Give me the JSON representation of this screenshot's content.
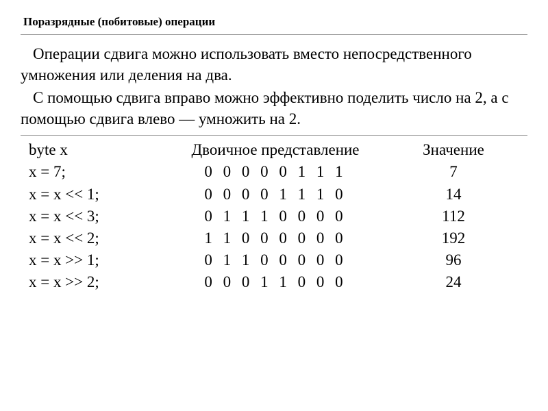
{
  "title": "Поразрядные (побитовые) операции",
  "paragraph1": "Операции сдвига можно использовать вместо непосредственного умножения или деления на два.",
  "paragraph2": "С помощью сдвига вправо можно эффективно поделить число на 2, а с помощью сдвига влево — умножить на 2.",
  "table": {
    "header": {
      "expr": "byte  x",
      "binary": "Двоичное представление",
      "value": "Значение"
    },
    "rows": [
      {
        "expr": "x = 7;",
        "binary": "0 0 0 0 0 1 1 1",
        "value": "7"
      },
      {
        "expr": "x = x << 1;",
        "binary": "0 0 0 0 1 1 1 0",
        "value": "14"
      },
      {
        "expr": "x = x << 3;",
        "binary": "0 1 1 1 0 0 0 0",
        "value": "112"
      },
      {
        "expr": "x = x << 2;",
        "binary": "1 1 0 0 0 0 0 0",
        "value": "192"
      },
      {
        "expr": "x = x >> 1;",
        "binary": "0 1 1 0 0 0 0 0",
        "value": "96"
      },
      {
        "expr": "x = x >> 2;",
        "binary": "0 0 0 1 1 0 0 0",
        "value": "24"
      }
    ]
  },
  "styling": {
    "background_color": "#ffffff",
    "text_color": "#000000",
    "divider_color": "#999999",
    "title_fontsize": 17,
    "body_fontsize": 23,
    "font_family": "Times New Roman",
    "title_font_weight": "bold",
    "line_height": 1.35
  }
}
